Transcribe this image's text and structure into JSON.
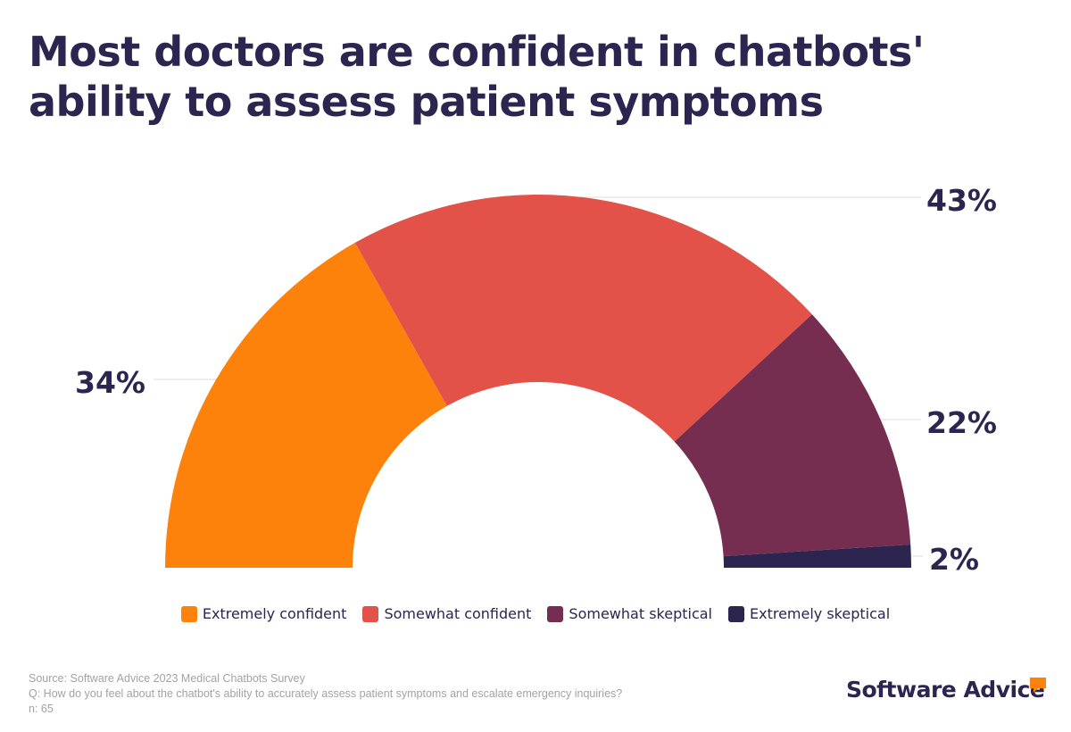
{
  "title": "Most doctors are confident in chatbots' ability to assess patient symptoms",
  "chart_data": {
    "type": "pie",
    "variant": "half-donut",
    "categories": [
      "Extremely confident",
      "Somewhat confident",
      "Somewhat skeptical",
      "Extremely skeptical"
    ],
    "values": [
      34,
      43,
      22,
      2
    ],
    "labels": [
      "34%",
      "43%",
      "22%",
      "2%"
    ],
    "colors": [
      "#fd820b",
      "#e35248",
      "#762e50",
      "#2b2550"
    ],
    "legend_position": "bottom"
  },
  "footer": {
    "source": "Source: Software Advice 2023 Medical Chatbots Survey",
    "question": "Q: How do you feel about the chatbot's ability to accurately assess patient symptoms and escalate emergency inquiries?",
    "n": "n: 65"
  },
  "brand": {
    "name": "Software Advice",
    "icon": "speech-bubble-icon",
    "icon_color": "#fd820b"
  }
}
